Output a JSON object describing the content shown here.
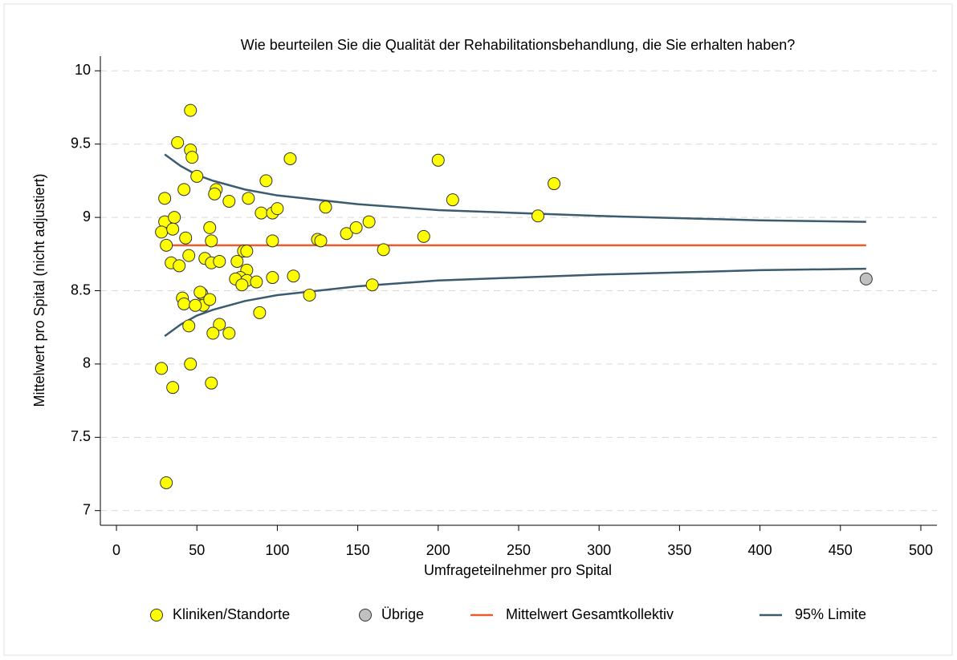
{
  "chart_data": {
    "type": "scatter",
    "title": "Wie beurteilen Sie die Qualität der Rehabilitationsbehandlung, die Sie erhalten haben?",
    "x_label": "Umfrageteilnehmer pro Spital",
    "y_label": "Mittelwert pro Spital (nicht adjustiert)",
    "xlim": [
      -10,
      510
    ],
    "ylim": [
      6.9,
      10.1
    ],
    "xticks": [
      0,
      50,
      100,
      150,
      200,
      250,
      300,
      350,
      400,
      450,
      500
    ],
    "yticks": [
      7,
      7.5,
      8,
      8.5,
      9,
      9.5,
      10
    ],
    "grid": true,
    "legend": "bottom",
    "series": [
      {
        "name": "Kliniken/Standorte",
        "type": "scatter",
        "color": "#ffff00",
        "x": [
          46,
          38,
          46,
          47,
          50,
          30,
          42,
          62,
          61,
          70,
          30,
          28,
          36,
          35,
          43,
          31,
          58,
          59,
          45,
          34,
          39,
          55,
          59,
          64,
          75,
          79,
          81,
          81,
          77,
          74,
          81,
          78,
          87,
          97,
          53,
          52,
          41,
          42,
          54,
          49,
          58,
          45,
          64,
          60,
          70,
          89,
          46,
          28,
          35,
          59,
          31,
          82,
          93,
          90,
          97,
          100,
          97,
          108,
          110,
          120,
          125,
          127,
          130,
          143,
          149,
          157,
          159,
          166,
          191,
          200,
          209,
          262,
          272
        ],
        "values": [
          9.73,
          9.51,
          9.46,
          9.41,
          9.28,
          9.13,
          9.19,
          9.19,
          9.16,
          9.11,
          8.97,
          8.9,
          9.0,
          8.92,
          8.86,
          8.81,
          8.93,
          8.84,
          8.74,
          8.69,
          8.67,
          8.72,
          8.69,
          8.7,
          8.7,
          8.77,
          8.77,
          8.64,
          8.59,
          8.58,
          8.57,
          8.54,
          8.56,
          8.59,
          8.48,
          8.49,
          8.45,
          8.41,
          8.4,
          8.4,
          8.44,
          8.26,
          8.27,
          8.21,
          8.21,
          8.35,
          8.0,
          7.97,
          7.84,
          7.87,
          7.19,
          9.13,
          9.25,
          9.03,
          9.03,
          9.06,
          8.84,
          9.4,
          8.6,
          8.47,
          8.85,
          8.84,
          9.07,
          8.89,
          8.93,
          8.97,
          8.54,
          8.78,
          8.87,
          9.39,
          9.12,
          9.01,
          9.23
        ]
      },
      {
        "name": "Übrige",
        "type": "scatter",
        "color": "#c0c0c0",
        "x": [
          466
        ],
        "values": [
          8.58
        ]
      },
      {
        "name": "Mittelwert Gesamtkollektiv",
        "type": "line",
        "color": "#f05a28",
        "x": [
          30,
          466
        ],
        "values": [
          8.81,
          8.81
        ]
      },
      {
        "name": "95% Limite",
        "type": "band",
        "color": "#3b5b6e",
        "x": [
          30,
          40,
          50,
          60,
          80,
          100,
          150,
          200,
          300,
          400,
          466
        ],
        "upper": [
          9.43,
          9.35,
          9.29,
          9.25,
          9.19,
          9.15,
          9.09,
          9.05,
          9.01,
          8.98,
          8.97
        ],
        "lower": [
          8.19,
          8.27,
          8.33,
          8.37,
          8.43,
          8.47,
          8.53,
          8.57,
          8.61,
          8.64,
          8.65
        ]
      }
    ]
  }
}
